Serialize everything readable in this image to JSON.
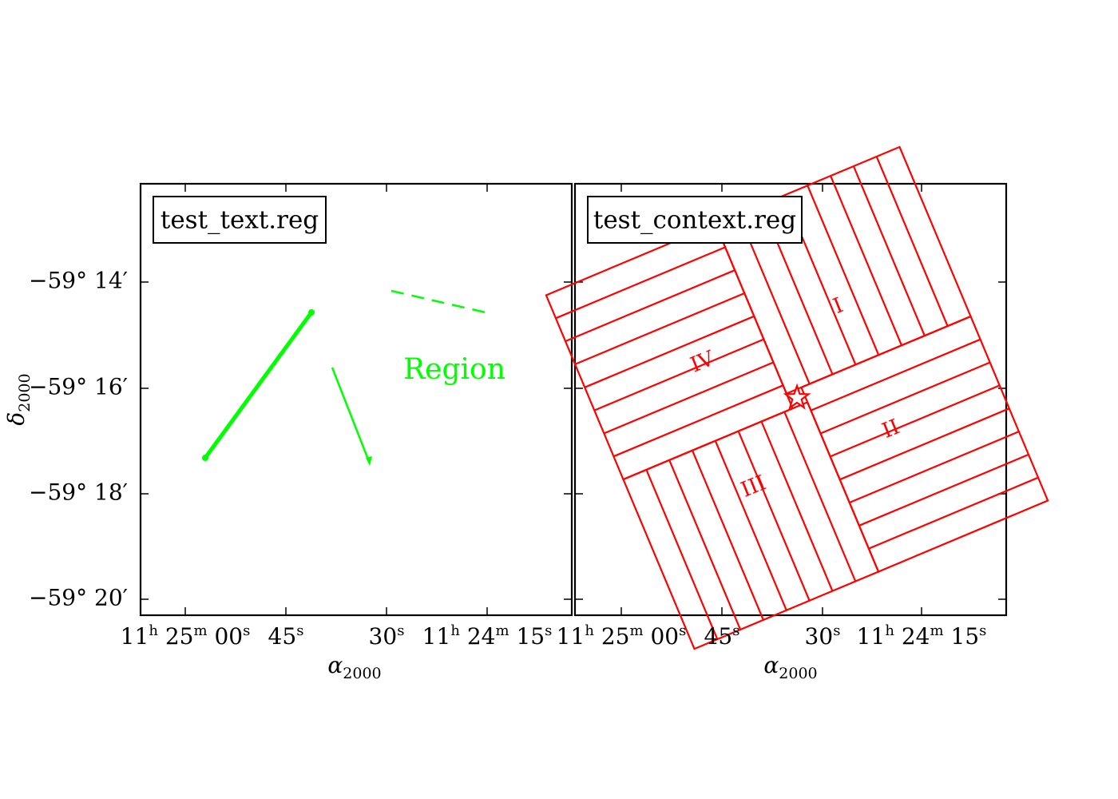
{
  "figure": {
    "panels": [
      {
        "id": "left",
        "legend_title": "test_text.reg",
        "region_text": "Region",
        "xlabel_main": "α",
        "xlabel_sub": "2000",
        "ylabel_main": "δ",
        "ylabel_sub": "2000",
        "color": "#00ff00"
      },
      {
        "id": "right",
        "legend_title": "test_context.reg",
        "xlabel_main": "α",
        "xlabel_sub": "2000",
        "color": "#ff0000",
        "quadrant_labels": [
          "I",
          "II",
          "III",
          "IV"
        ]
      }
    ],
    "yticks": [
      "−59° 14′",
      "−59° 16′",
      "−59° 18′",
      "−59° 20′"
    ],
    "xticks": [
      {
        "h": "11",
        "m": "25",
        "s": "00"
      },
      {
        "s": "45"
      },
      {
        "s": "30"
      },
      {
        "h": "11",
        "m": "24",
        "s": "15"
      }
    ]
  },
  "chart_data": [
    {
      "type": "scatter",
      "title": "test_text.reg",
      "xlabel": "α2000",
      "ylabel": "δ2000",
      "x_ticks": [
        "11h 25m 00s",
        "45s",
        "30s",
        "11h 24m 15s"
      ],
      "y_ticks": [
        "−59° 14′",
        "−59° 16′",
        "−59° 18′",
        "−59° 20′"
      ],
      "y_unit": "deg",
      "xlim_sec_before_11h25m": [
        -8.7,
        78.3
      ],
      "ylim_dec_deg": [
        -59.3417,
        -59.1833
      ],
      "annotations": [
        {
          "kind": "thick-line",
          "from": [
            -3.6,
            -59.2889
          ],
          "to": [
            37.8,
            -59.2611
          ],
          "color": "#00ff00"
        },
        {
          "kind": "thin-arrow-line",
          "from": [
            29.7,
            -59.2583
          ],
          "to": [
            44.4,
            -59.2761
          ],
          "color": "#00ff00"
        },
        {
          "kind": "dashed-line",
          "from": [
            37.8,
            -59.2361
          ],
          "to": [
            71.4,
            -59.2472
          ],
          "color": "#00ff00"
        },
        {
          "kind": "text",
          "text": "Region",
          "at": [
            63.0,
            -59.2667
          ],
          "color": "#00ff00"
        }
      ]
    },
    {
      "type": "scatter",
      "title": "test_context.reg",
      "xlabel": "α2000",
      "x_ticks": [
        "11h 25m 00s",
        "45s",
        "30s",
        "11h 24m 15s"
      ],
      "xlim_sec_before_11h25m": [
        -8.7,
        78.3
      ],
      "ylim_dec_deg": [
        -59.3417,
        -59.1833
      ],
      "annotations": [
        {
          "kind": "center-star",
          "at": [
            36.9,
            -59.2694
          ],
          "color": "#ff0000"
        },
        {
          "kind": "hatched-rotated-box-quadrants",
          "labels": [
            "I",
            "II",
            "III",
            "IV"
          ],
          "hatch_lines_per_quadrant": 8,
          "color": "#ff0000"
        }
      ]
    }
  ]
}
